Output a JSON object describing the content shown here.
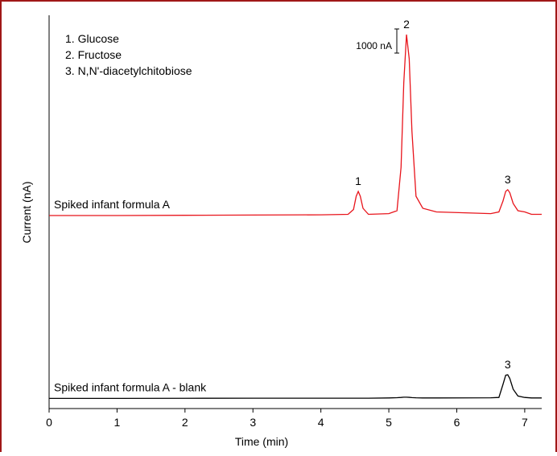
{
  "chart_data": {
    "type": "line",
    "xlabel": "Time (min)",
    "ylabel": "Current (nA)",
    "x": [
      0,
      1,
      2,
      3,
      4,
      4.4,
      4.48,
      4.52,
      4.55,
      4.58,
      4.62,
      4.7,
      5.0,
      5.12,
      5.18,
      5.22,
      5.26,
      5.3,
      5.34,
      5.4,
      5.5,
      5.7,
      6.5,
      6.62,
      6.68,
      6.72,
      6.75,
      6.78,
      6.83,
      6.9,
      7.0,
      7.1,
      7.25
    ],
    "series": [
      {
        "name": "Spiked infant formula A",
        "color": "#e8141b",
        "values": [
          8000,
          8000,
          8010,
          8020,
          8030,
          8050,
          8250,
          8800,
          9000,
          8800,
          8300,
          8050,
          8080,
          8200,
          10000,
          13500,
          15500,
          14500,
          11500,
          8800,
          8300,
          8150,
          8080,
          8150,
          8600,
          9000,
          9070,
          8950,
          8500,
          8200,
          8150,
          8050,
          8050
        ]
      },
      {
        "name": "Spiked infant formula A - blank",
        "color": "#000000",
        "values": [
          420,
          420,
          425,
          430,
          430,
          430,
          430,
          430,
          430,
          430,
          430,
          430,
          440,
          450,
          460,
          470,
          470,
          465,
          455,
          445,
          440,
          440,
          445,
          460,
          1000,
          1380,
          1400,
          1250,
          800,
          520,
          460,
          440,
          440
        ]
      }
    ],
    "peak_labels": [
      {
        "text": "1",
        "x": 4.55,
        "series": 0
      },
      {
        "text": "2",
        "x": 5.26,
        "series": 0
      },
      {
        "text": "3",
        "x": 6.75,
        "series": 0
      },
      {
        "text": "3",
        "x": 6.75,
        "series": 1
      }
    ],
    "legend_items": [
      "1. Glucose",
      "2. Fructose",
      "3. N,N'-diacetylchitobiose"
    ],
    "scale_bar": {
      "label": "1000 nA",
      "value": 1000
    },
    "xlim": [
      0,
      7.25
    ],
    "xticks": [
      0,
      1,
      2,
      3,
      4,
      5,
      6,
      7
    ],
    "ylim": [
      0,
      16300
    ]
  }
}
